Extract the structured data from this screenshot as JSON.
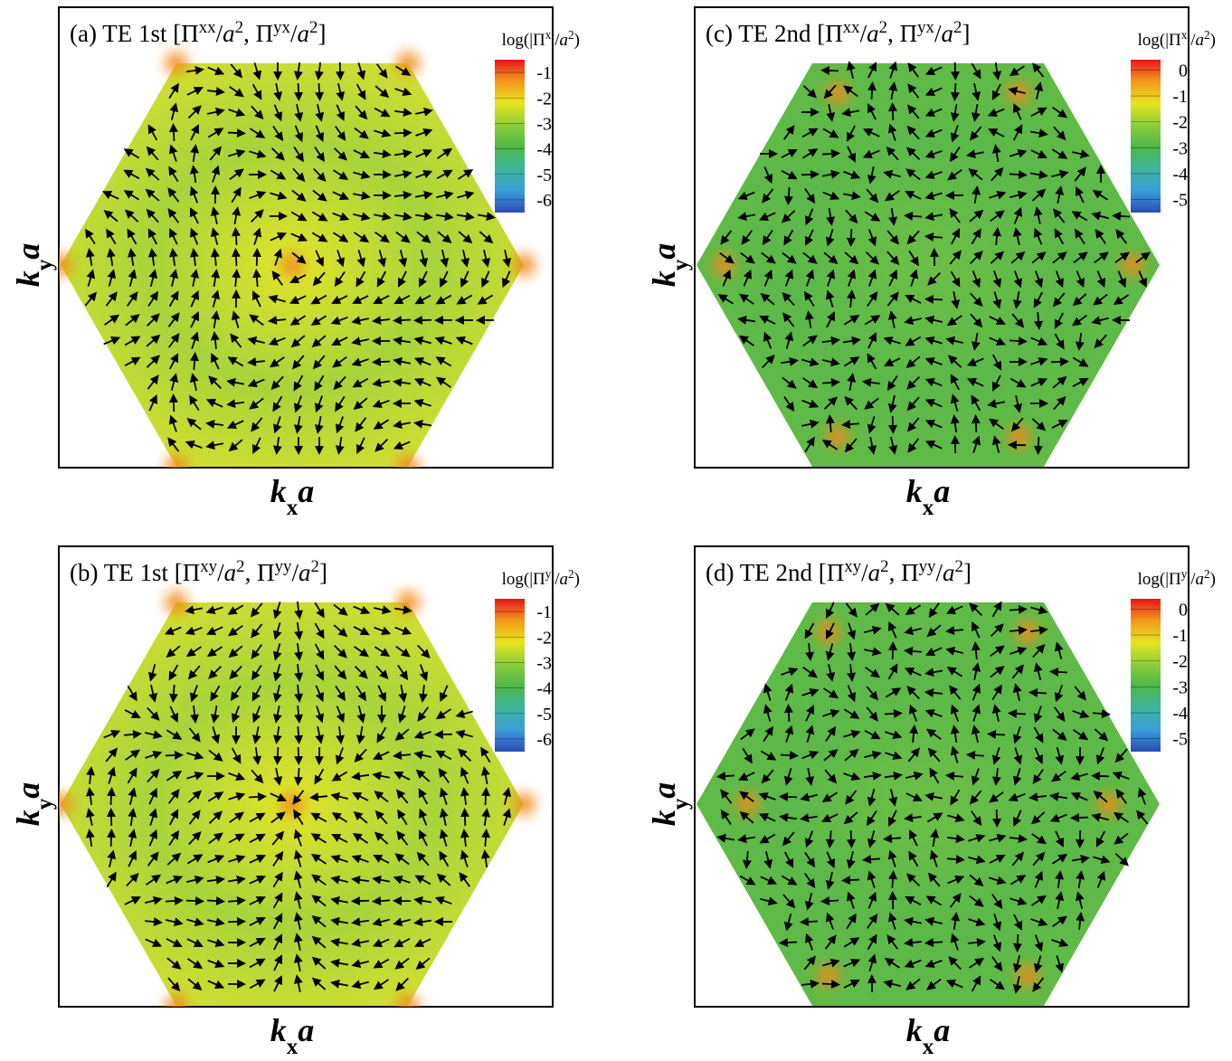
{
  "chart_data": [
    {
      "type": "quiver",
      "title": [
        {
          "t": "(a) TE 1st  [Π"
        },
        {
          "t": "xx",
          "s": "sup"
        },
        {
          "t": "/"
        },
        {
          "t": "a",
          "s": "it"
        },
        {
          "t": "2",
          "s": "sup"
        },
        {
          "t": ", Π"
        },
        {
          "t": "yx",
          "s": "sup"
        },
        {
          "t": "/"
        },
        {
          "t": "a",
          "s": "it"
        },
        {
          "t": "2",
          "s": "sup"
        },
        {
          "t": "]"
        }
      ],
      "xlabel": [
        {
          "t": "k",
          "s": "it"
        },
        {
          "t": "x",
          "s": "sub"
        },
        {
          "t": "a",
          "s": "it"
        }
      ],
      "ylabel": [
        {
          "t": "k",
          "s": "it"
        },
        {
          "t": "y",
          "s": "sub"
        },
        {
          "t": "a",
          "s": "it"
        }
      ],
      "colorbar": {
        "label": [
          {
            "t": "log(|Π"
          },
          {
            "t": "x",
            "s": "sup"
          },
          {
            "t": "|/"
          },
          {
            "t": "a",
            "s": "it"
          },
          {
            "t": "2",
            "s": "sup"
          },
          {
            "t": ")"
          }
        ],
        "ylim": [
          -6.5,
          -0.5
        ],
        "yticks": [
          -1,
          -2,
          -3,
          -4,
          -5,
          -6
        ],
        "colors": [
          "#e8141a",
          "#f39a1c",
          "#e6e41e",
          "#8ccd3a",
          "#4cb848",
          "#3db49c",
          "#3a9ed8",
          "#2a4cb6"
        ]
      }
    },
    {
      "type": "quiver",
      "title": [
        {
          "t": "(b) TE 1st [Π"
        },
        {
          "t": "xy",
          "s": "sup"
        },
        {
          "t": "/"
        },
        {
          "t": "a",
          "s": "it"
        },
        {
          "t": "2",
          "s": "sup"
        },
        {
          "t": ", Π"
        },
        {
          "t": "yy",
          "s": "sup"
        },
        {
          "t": "/"
        },
        {
          "t": "a",
          "s": "it"
        },
        {
          "t": "2",
          "s": "sup"
        },
        {
          "t": "]"
        }
      ],
      "xlabel": [
        {
          "t": "k",
          "s": "it"
        },
        {
          "t": "x",
          "s": "sub"
        },
        {
          "t": "a",
          "s": "it"
        }
      ],
      "ylabel": [
        {
          "t": "k",
          "s": "it"
        },
        {
          "t": "y",
          "s": "sub"
        },
        {
          "t": "a",
          "s": "it"
        }
      ],
      "colorbar": {
        "label": [
          {
            "t": "log(|Π"
          },
          {
            "t": "y",
            "s": "sup"
          },
          {
            "t": "|/"
          },
          {
            "t": "a",
            "s": "it"
          },
          {
            "t": "2",
            "s": "sup"
          },
          {
            "t": ")"
          }
        ],
        "ylim": [
          -6.5,
          -0.5
        ],
        "yticks": [
          -1,
          -2,
          -3,
          -4,
          -5,
          -6
        ],
        "colors": [
          "#e8141a",
          "#f39a1c",
          "#e6e41e",
          "#8ccd3a",
          "#4cb848",
          "#3db49c",
          "#3a9ed8",
          "#2a4cb6"
        ]
      }
    },
    {
      "type": "quiver",
      "title": [
        {
          "t": "(c) TE 2nd  [Π"
        },
        {
          "t": "xx",
          "s": "sup"
        },
        {
          "t": "/"
        },
        {
          "t": "a",
          "s": "it"
        },
        {
          "t": "2",
          "s": "sup"
        },
        {
          "t": ", Π"
        },
        {
          "t": "yx",
          "s": "sup"
        },
        {
          "t": "/"
        },
        {
          "t": "a",
          "s": "it"
        },
        {
          "t": "2",
          "s": "sup"
        },
        {
          "t": "]"
        }
      ],
      "xlabel": [
        {
          "t": "k",
          "s": "it"
        },
        {
          "t": "x",
          "s": "sub"
        },
        {
          "t": "a",
          "s": "it"
        }
      ],
      "ylabel": [
        {
          "t": "k",
          "s": "it"
        },
        {
          "t": "y",
          "s": "sub"
        },
        {
          "t": "a",
          "s": "it"
        }
      ],
      "colorbar": {
        "label": [
          {
            "t": "log(|Π"
          },
          {
            "t": "x",
            "s": "sup"
          },
          {
            "t": "|/"
          },
          {
            "t": "a",
            "s": "it"
          },
          {
            "t": "2",
            "s": "sup"
          },
          {
            "t": ")"
          }
        ],
        "ylim": [
          -5.5,
          0.4
        ],
        "yticks": [
          0,
          -1,
          -2,
          -3,
          -4,
          -5
        ],
        "colors": [
          "#e8141a",
          "#f39a1c",
          "#e6e41e",
          "#8ccd3a",
          "#4cb848",
          "#3db49c",
          "#3a9ed8",
          "#2a4cb6"
        ]
      }
    },
    {
      "type": "quiver",
      "title": [
        {
          "t": "(d) TE 2nd [Π"
        },
        {
          "t": "xy",
          "s": "sup"
        },
        {
          "t": "/"
        },
        {
          "t": "a",
          "s": "it"
        },
        {
          "t": "2",
          "s": "sup"
        },
        {
          "t": ", Π"
        },
        {
          "t": "yy",
          "s": "sup"
        },
        {
          "t": "/"
        },
        {
          "t": "a",
          "s": "it"
        },
        {
          "t": "2",
          "s": "sup"
        },
        {
          "t": "]"
        }
      ],
      "xlabel": [
        {
          "t": "k",
          "s": "it"
        },
        {
          "t": "x",
          "s": "sub"
        },
        {
          "t": "a",
          "s": "it"
        }
      ],
      "ylabel": [
        {
          "t": "k",
          "s": "it"
        },
        {
          "t": "y",
          "s": "sub"
        },
        {
          "t": "a",
          "s": "it"
        }
      ],
      "colorbar": {
        "label": [
          {
            "t": "log(|Π"
          },
          {
            "t": "y",
            "s": "sup"
          },
          {
            "t": "|/"
          },
          {
            "t": "a",
            "s": "it"
          },
          {
            "t": "2",
            "s": "sup"
          },
          {
            "t": ")"
          }
        ],
        "ylim": [
          -5.5,
          0.4
        ],
        "yticks": [
          0,
          -1,
          -2,
          -3,
          -4,
          -5
        ],
        "colors": [
          "#e8141a",
          "#f39a1c",
          "#e6e41e",
          "#8ccd3a",
          "#4cb848",
          "#3db49c",
          "#3a9ed8",
          "#2a4cb6"
        ]
      }
    }
  ]
}
